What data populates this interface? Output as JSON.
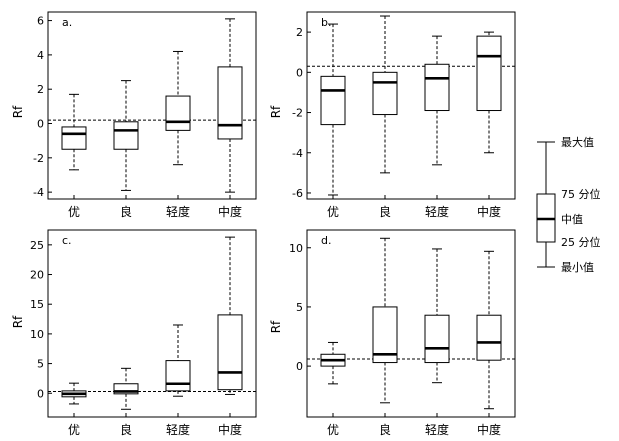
{
  "chart_data": [
    {
      "type": "boxplot",
      "panel_label": "a.",
      "ylabel": "Rf",
      "categories": [
        "优",
        "良",
        "轻度",
        "中度"
      ],
      "ylim": [
        -4.4,
        6.5
      ],
      "yticks": [
        -4,
        -2,
        0,
        2,
        4,
        6
      ],
      "reference_line": 0.2,
      "boxes": [
        {
          "min": -2.7,
          "q1": -1.5,
          "median": -0.6,
          "q3": -0.2,
          "max": 1.7
        },
        {
          "min": -3.9,
          "q1": -1.5,
          "median": -0.4,
          "q3": 0.1,
          "max": 2.5
        },
        {
          "min": -2.4,
          "q1": -0.4,
          "median": 0.1,
          "q3": 1.6,
          "max": 4.2
        },
        {
          "min": -4.0,
          "q1": -0.9,
          "median": -0.1,
          "q3": 3.3,
          "max": 6.1
        }
      ]
    },
    {
      "type": "boxplot",
      "panel_label": "b.",
      "ylabel": "Rf",
      "categories": [
        "优",
        "良",
        "轻度",
        "中度"
      ],
      "ylim": [
        -6.3,
        3.0
      ],
      "yticks": [
        -6,
        -4,
        -2,
        0,
        2
      ],
      "reference_line": 0.3,
      "boxes": [
        {
          "min": -6.1,
          "q1": -2.6,
          "median": -0.9,
          "q3": -0.2,
          "max": 2.4
        },
        {
          "min": -5.0,
          "q1": -2.1,
          "median": -0.5,
          "q3": 0.0,
          "max": 2.8
        },
        {
          "min": -4.6,
          "q1": -1.9,
          "median": -0.3,
          "q3": 0.4,
          "max": 1.8
        },
        {
          "min": -4.0,
          "q1": -1.9,
          "median": 0.8,
          "q3": 1.8,
          "max": 2.0
        }
      ]
    },
    {
      "type": "boxplot",
      "panel_label": "c.",
      "ylabel": "Rf",
      "categories": [
        "优",
        "良",
        "轻度",
        "中度"
      ],
      "ylim": [
        -4,
        27.5
      ],
      "yticks": [
        0,
        5,
        10,
        15,
        20,
        25
      ],
      "reference_line": 0.3,
      "boxes": [
        {
          "min": -1.8,
          "q1": -0.6,
          "median": -0.1,
          "q3": 0.4,
          "max": 1.7
        },
        {
          "min": -2.7,
          "q1": -0.1,
          "median": 0.3,
          "q3": 1.6,
          "max": 4.2
        },
        {
          "min": -0.5,
          "q1": 0.4,
          "median": 1.6,
          "q3": 5.5,
          "max": 11.5
        },
        {
          "min": -0.2,
          "q1": 0.6,
          "median": 3.5,
          "q3": 13.2,
          "max": 26.3
        }
      ]
    },
    {
      "type": "boxplot",
      "panel_label": "d.",
      "ylabel": "Rf",
      "categories": [
        "优",
        "良",
        "轻度",
        "中度"
      ],
      "ylim": [
        -4.3,
        11.5
      ],
      "yticks": [
        0,
        5,
        10
      ],
      "reference_line": 0.6,
      "boxes": [
        {
          "min": -1.5,
          "q1": 0.0,
          "median": 0.5,
          "q3": 1.0,
          "max": 2.0
        },
        {
          "min": -3.1,
          "q1": 0.3,
          "median": 1.0,
          "q3": 5.0,
          "max": 10.8
        },
        {
          "min": -1.4,
          "q1": 0.3,
          "median": 1.5,
          "q3": 4.3,
          "max": 9.9
        },
        {
          "min": -3.6,
          "q1": 0.5,
          "median": 2.0,
          "q3": 4.3,
          "max": 9.7
        }
      ]
    }
  ],
  "legend": {
    "max": "最大值",
    "q3": "75 分位",
    "median": "中值",
    "q1": "25 分位",
    "min": "最小值"
  }
}
